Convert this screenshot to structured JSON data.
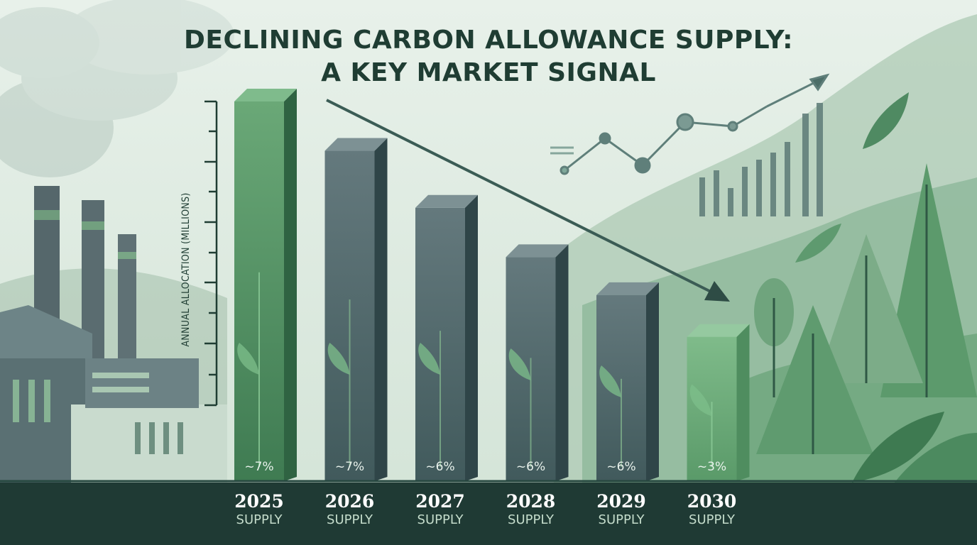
{
  "title_lines": [
    "DECLINING CARBON ALLOWANCE SUPPLY:",
    "A KEY MARKET SIGNAL"
  ],
  "colors": {
    "background": "#dce9df",
    "title": "#1f3d33",
    "bar_green": "#5e9a6c",
    "bar_slate": "#5d7377",
    "base_strip": "#1f3a34",
    "axis": "#1f3d33"
  },
  "chart_data": {
    "type": "bar",
    "title": "DECLINING CARBON ALLOWANCE SUPPLY: A KEY MARKET SIGNAL",
    "ylabel": "ANNUAL ALLOCATION (MILLIONS)",
    "xlabel": "",
    "categories": [
      "2025",
      "2026",
      "2027",
      "2028",
      "2029",
      "2030"
    ],
    "category_sublabel": "SUPPLY",
    "values": [
      100,
      87,
      72,
      59,
      49,
      38
    ],
    "data_labels": [
      "~7%",
      "~7%",
      "~6%",
      "~6%",
      "~6%",
      "~3%"
    ],
    "bar_colors": [
      "green",
      "slate",
      "slate",
      "slate",
      "slate",
      "green"
    ],
    "ylim": [
      0,
      100
    ],
    "grid": false,
    "y_tick_labels_shown": false,
    "trend": "declining"
  }
}
